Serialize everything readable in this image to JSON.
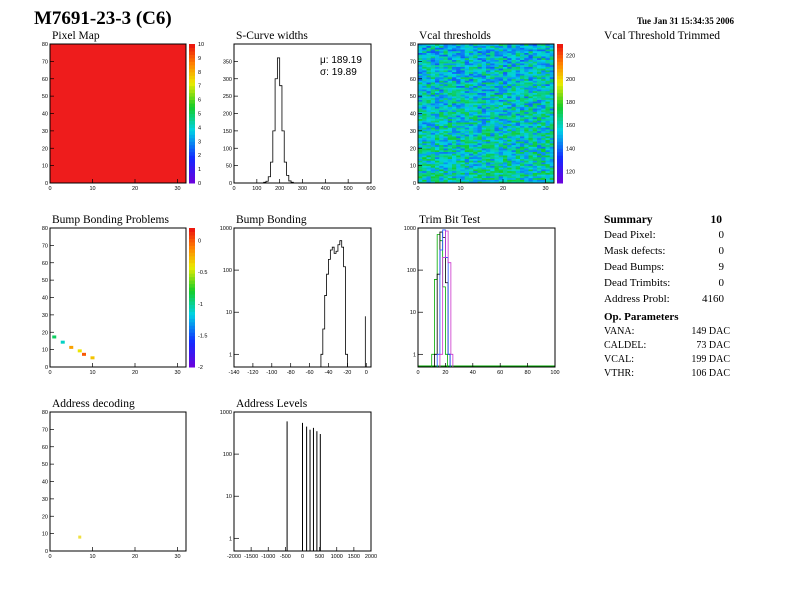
{
  "header": {
    "title": "M7691-23-3 (C6)",
    "timestamp": "Tue Jan 31 15:34:35 2006",
    "vcal_trimmed_label": "Vcal Threshold Trimmed"
  },
  "summary": {
    "title": "Summary",
    "count": "10",
    "rows": [
      {
        "label": "Dead Pixel:",
        "value": "0"
      },
      {
        "label": "Mask defects:",
        "value": "0"
      },
      {
        "label": "Dead Bumps:",
        "value": "9"
      },
      {
        "label": "Dead Trimbits:",
        "value": "0"
      },
      {
        "label": "Address Probl:",
        "value": "4160"
      }
    ]
  },
  "op_params": {
    "title": "Op. Parameters",
    "rows": [
      {
        "label": "VANA:",
        "value": "149 DAC"
      },
      {
        "label": "CALDEL:",
        "value": "73 DAC"
      },
      {
        "label": "VCAL:",
        "value": "199 DAC"
      },
      {
        "label": "VTHR:",
        "value": "106 DAC"
      }
    ]
  },
  "chart_data": [
    {
      "id": "pixel-map",
      "type": "heatmap",
      "title": "Pixel Map",
      "xlim": [
        0,
        32
      ],
      "ylim": [
        0,
        80
      ],
      "xticks": [
        0,
        10,
        20,
        30
      ],
      "yticks": [
        0,
        10,
        20,
        30,
        40,
        50,
        60,
        70,
        80
      ],
      "zlim": [
        0,
        10
      ],
      "zticks": [
        0,
        1,
        2,
        3,
        4,
        5,
        6,
        7,
        8,
        9,
        10
      ],
      "uniform_value": 10,
      "color": "#ee1c1c"
    },
    {
      "id": "s-curve-widths",
      "type": "line",
      "title": "S-Curve widths",
      "stats": {
        "mean_label": "μ:",
        "mean": "189.19",
        "sigma_label": "σ:",
        "sigma": "19.89"
      },
      "xlim": [
        0,
        600
      ],
      "ylim": [
        0,
        400
      ],
      "xticks": [
        0,
        100,
        200,
        300,
        400,
        500,
        600
      ],
      "yticks": [
        0,
        50,
        100,
        150,
        200,
        250,
        300,
        350
      ],
      "x": [
        120,
        130,
        140,
        150,
        160,
        170,
        180,
        190,
        200,
        210,
        220,
        230,
        240,
        250,
        260
      ],
      "values": [
        0,
        2,
        5,
        18,
        60,
        150,
        300,
        360,
        280,
        150,
        60,
        22,
        6,
        2,
        0
      ]
    },
    {
      "id": "vcal-thresholds",
      "type": "heatmap",
      "title": "Vcal thresholds",
      "xlim": [
        0,
        32
      ],
      "ylim": [
        0,
        80
      ],
      "xticks": [
        0,
        10,
        20,
        30
      ],
      "yticks": [
        0,
        10,
        20,
        30,
        40,
        50,
        60,
        70,
        80
      ],
      "zlim": [
        110,
        230
      ],
      "zticks": [
        120,
        140,
        160,
        180,
        200,
        220
      ]
    },
    {
      "id": "bump-bonding-problems",
      "type": "heatmap",
      "title": "Bump Bonding Problems",
      "xlim": [
        0,
        32
      ],
      "ylim": [
        0,
        80
      ],
      "xticks": [
        0,
        10,
        20,
        30
      ],
      "yticks": [
        0,
        10,
        20,
        30,
        40,
        50,
        60,
        70,
        80
      ],
      "zlim": [
        -2,
        0.2
      ],
      "zticks": [
        0,
        -0.5,
        -1,
        -1.5,
        -2
      ],
      "points": [
        {
          "x": 1,
          "y": 17,
          "z": -0.9
        },
        {
          "x": 3,
          "y": 14,
          "z": -1.1
        },
        {
          "x": 5,
          "y": 11,
          "z": -0.2
        },
        {
          "x": 7,
          "y": 9,
          "z": -0.4
        },
        {
          "x": 8,
          "y": 7,
          "z": 0
        },
        {
          "x": 10,
          "y": 5,
          "z": -0.3
        }
      ]
    },
    {
      "id": "bump-bonding",
      "type": "line",
      "title": "Bump Bonding",
      "log_y": true,
      "xlim": [
        -140,
        5
      ],
      "ylim": [
        0.5,
        1000
      ],
      "xticks": [
        -140,
        -120,
        -100,
        -80,
        -60,
        -40,
        -20,
        0
      ],
      "yticks": [
        1,
        10,
        100,
        1000
      ],
      "x": [
        -48,
        -46,
        -44,
        -42,
        -40,
        -38,
        -36,
        -34,
        -32,
        -30,
        -28,
        -26,
        -24,
        -22
      ],
      "values": [
        1,
        4,
        25,
        80,
        180,
        300,
        350,
        250,
        280,
        400,
        500,
        350,
        120,
        1
      ]
    },
    {
      "id": "trim-bit-test",
      "type": "line",
      "title": "Trim Bit Test",
      "log_y": true,
      "xlim": [
        0,
        100
      ],
      "ylim": [
        0.5,
        1000
      ],
      "xticks": [
        0,
        20,
        40,
        60,
        80,
        100
      ],
      "yticks": [
        1,
        10,
        100,
        1000
      ],
      "series": [
        {
          "color": "#00aa00",
          "x": [
            10,
            12,
            14,
            16,
            18,
            20
          ],
          "values": [
            1,
            60,
            700,
            500,
            40,
            1
          ]
        },
        {
          "color": "#000000",
          "x": [
            12,
            14,
            16,
            18,
            20,
            22
          ],
          "values": [
            1,
            80,
            800,
            600,
            50,
            1
          ]
        },
        {
          "color": "#2050ff",
          "x": [
            14,
            16,
            18,
            20,
            22
          ],
          "values": [
            1,
            300,
            900,
            200,
            1
          ]
        },
        {
          "color": "#cc33cc",
          "x": [
            16,
            18,
            20,
            22,
            24
          ],
          "values": [
            1,
            200,
            850,
            150,
            1
          ]
        }
      ]
    },
    {
      "id": "address-decoding",
      "type": "heatmap",
      "title": "Address decoding",
      "xlim": [
        0,
        32
      ],
      "ylim": [
        0,
        80
      ],
      "xticks": [
        0,
        10,
        20,
        30
      ],
      "yticks": [
        0,
        10,
        20,
        30,
        40,
        50,
        60,
        70,
        80
      ],
      "points": [
        {
          "x": 7,
          "y": 8,
          "z": 1
        }
      ]
    },
    {
      "id": "address-levels",
      "type": "bar",
      "title": "Address Levels",
      "log_y": true,
      "xlim": [
        -2000,
        2000
      ],
      "ylim": [
        0.5,
        1000
      ],
      "xticks": [
        -2000,
        -1500,
        -1000,
        -500,
        0,
        500,
        1000,
        1500,
        2000
      ],
      "yticks": [
        1,
        10,
        100,
        1000
      ],
      "x": [
        -450,
        0,
        120,
        220,
        320,
        420,
        520
      ],
      "values": [
        600,
        550,
        450,
        380,
        420,
        350,
        300
      ]
    }
  ]
}
